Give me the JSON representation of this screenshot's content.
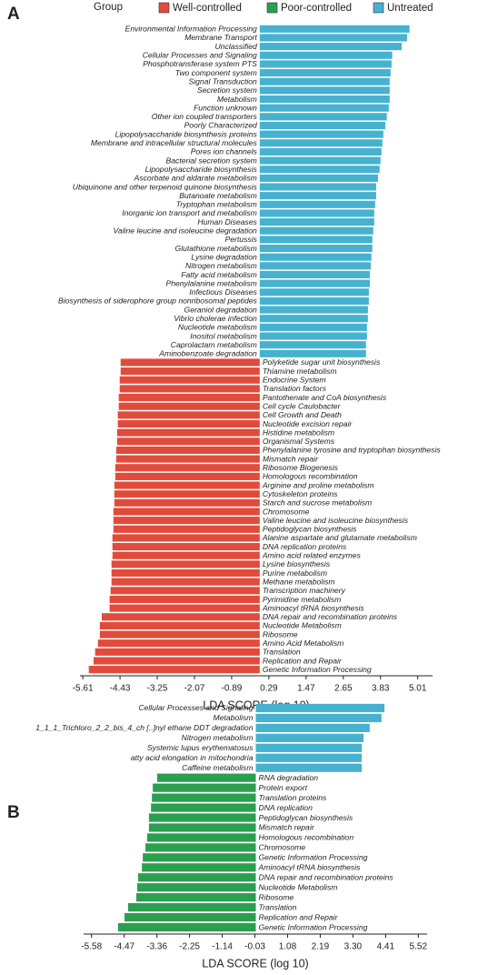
{
  "legend": {
    "title": "Group",
    "items": [
      {
        "name": "Well-controlled",
        "color": "#e14b3b"
      },
      {
        "name": "Poor-controlled",
        "color": "#2aa04f"
      },
      {
        "name": "Untreated",
        "color": "#46b2d0"
      }
    ]
  },
  "chart_data": [
    {
      "type": "bar",
      "orientation": "horizontal",
      "panel_label": "A",
      "xlabel": "LDA SCORE (log 10)",
      "xlim": [
        -5.7,
        5.48
      ],
      "xticks": [
        -5.61,
        -4.43,
        -3.25,
        -2.07,
        -0.89,
        0.29,
        1.47,
        2.65,
        3.83,
        5.01
      ],
      "series": [
        {
          "name": "Untreated",
          "color": "#46b2d0",
          "categories": [
            "Environmental Information Processing",
            "Membrane Transport",
            "Unclassified",
            "Cellular Processes and Signaling",
            "Phosphotransferase system PTS",
            "Two component system",
            "Signal Transduction",
            "Secretion system",
            "Metabolism",
            "Function unknown",
            "Other ion coupled transporters",
            "Poorly Characterized",
            "Lipopolysaccharide biosynthesis proteins",
            "Membrane and intracellular structural molecules",
            "Pores ion channels",
            "Bacterial secretion system",
            "Lipopolysaccharide biosynthesis",
            "Ascorbate and aldarate metabolism",
            "Ubiquinone and other terpenoid quinone biosynthesis",
            "Butanoate metabolism",
            "Tryptophan metabolism",
            "Inorganic ion transport and metabolism",
            "Human Diseases",
            "Valine leucine and isoleucine degradation",
            "Pertussis",
            "Glutathione metabolism",
            "Lysine degradation",
            "Nitrogen metabolism",
            "Fatty acid metabolism",
            "Phenylalanine metabolism",
            "Infectious Diseases",
            "Biosynthesis of siderophore group nonribosomal peptides",
            "Geraniol degradation",
            "Vibrio cholerae infection",
            "Nucleotide metabolism",
            "Inositol metabolism",
            "Caprolactam metabolism",
            "Aminobenzoate degradation"
          ],
          "values": [
            4.75,
            4.67,
            4.5,
            4.2,
            4.18,
            4.15,
            4.12,
            4.12,
            4.12,
            4.09,
            4.03,
            3.98,
            3.92,
            3.89,
            3.86,
            3.83,
            3.8,
            3.75,
            3.69,
            3.69,
            3.66,
            3.63,
            3.63,
            3.6,
            3.57,
            3.57,
            3.54,
            3.52,
            3.49,
            3.49,
            3.46,
            3.46,
            3.43,
            3.43,
            3.4,
            3.4,
            3.37,
            3.37
          ]
        },
        {
          "name": "Well-controlled",
          "color": "#e14b3b",
          "categories": [
            "Polyketide sugar unit biosynthesis",
            "Thiamine metabolism",
            "Endocrine System",
            "Translation factors",
            "Pantothenate and CoA biosynthesis",
            "Cell cycle Caulobacter",
            "Cell Growth and Death",
            "Nucleotide excision repair",
            "Histidine metabolism",
            "Organismal Systems",
            "Phenylalanine tyrosine and tryptophan biosynthesis",
            "Mismatch repair",
            "Ribosome Biogenesis",
            "Homologous recombination",
            "Arginine and proline metabolism",
            "Cytoskeleton proteins",
            "Starch and sucrose metabolism",
            "Chromosome",
            "Valine leucine and isoleucine biosynthesis",
            "Peptidoglycan biosynthesis",
            "Alanine aspartate and glutamate metabolism",
            "DNA replication proteins",
            "Amino acid related enzymes",
            "Lysine biosynthesis",
            "Purine metabolism",
            "Methane metabolism",
            "Transcription machinery",
            "Pyrimidine metabolism",
            "Aminoacyl tRNA biosynthesis",
            "DNA repair and recombination proteins",
            "Nucleotide Metabolism",
            "Ribosome",
            "Amino Acid Metabolism",
            "Translation",
            "Replication and Repair",
            "Genetic Information Processing"
          ],
          "values": [
            -4.41,
            -4.41,
            -4.44,
            -4.44,
            -4.47,
            -4.47,
            -4.5,
            -4.5,
            -4.52,
            -4.52,
            -4.55,
            -4.55,
            -4.58,
            -4.58,
            -4.61,
            -4.61,
            -4.61,
            -4.64,
            -4.64,
            -4.64,
            -4.67,
            -4.67,
            -4.67,
            -4.7,
            -4.7,
            -4.7,
            -4.73,
            -4.76,
            -4.76,
            -5.01,
            -5.07,
            -5.07,
            -5.13,
            -5.22,
            -5.27,
            -5.42
          ]
        }
      ]
    },
    {
      "type": "bar",
      "orientation": "horizontal",
      "panel_label": "B",
      "xlabel": "LDA SCORE (log 10)",
      "xlim": [
        -5.85,
        5.82
      ],
      "xticks": [
        -5.58,
        -4.47,
        -3.36,
        -2.25,
        -1.14,
        -0.03,
        1.08,
        2.19,
        {
          "value": 3.3,
          "label": "3.30"
        },
        4.41,
        5.52
      ],
      "series": [
        {
          "name": "Untreated",
          "color": "#46b2d0",
          "categories": [
            "Cellular Processes and Signaling",
            "Metabolism",
            "1_1_1_Trichloro_2_2_bis_4_ch [..]nyl ethane DDT degradation",
            "Nitrogen metabolism",
            "Systemic lupus erythematosus",
            "atty acid elongation in mitochondria",
            "Caffeine metabolism"
          ],
          "values": [
            4.37,
            4.27,
            3.87,
            3.66,
            3.6,
            3.6,
            3.6
          ]
        },
        {
          "name": "Poor-controlled",
          "color": "#2aa04f",
          "categories": [
            "RNA degradation",
            "Protein export",
            "Translation proteins",
            "DNA replication",
            "Peptidoglycan biosynthesis",
            "Mismatch repair",
            "Homologous recombination",
            "Chromosome",
            "Genetic Information Processing",
            "Aminoacyl tRNA biosynthesis",
            "DNA repair and recombination proteins",
            "Nucleotide Metabolism",
            "Ribosome",
            "Translation",
            "Replication and Repair",
            "Genetic Information Processing"
          ],
          "values": [
            -3.35,
            -3.5,
            -3.53,
            -3.56,
            -3.63,
            -3.63,
            -3.69,
            -3.75,
            -3.84,
            -3.87,
            -4.0,
            -4.03,
            -4.06,
            -4.34,
            -4.46,
            -4.68
          ]
        }
      ]
    }
  ]
}
